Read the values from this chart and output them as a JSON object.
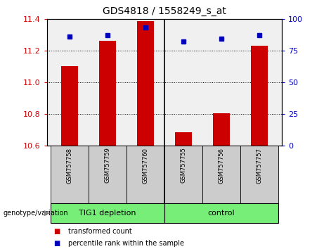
{
  "title": "GDS4818 / 1558249_s_at",
  "samples": [
    "GSM757758",
    "GSM757759",
    "GSM757760",
    "GSM757755",
    "GSM757756",
    "GSM757757"
  ],
  "transformed_counts": [
    11.1,
    11.26,
    11.385,
    10.685,
    10.805,
    11.23
  ],
  "percentile_ranks": [
    86,
    87,
    93,
    82,
    84,
    87
  ],
  "ylim_left": [
    10.6,
    11.4
  ],
  "yticks_left": [
    10.6,
    10.8,
    11.0,
    11.2,
    11.4
  ],
  "ylim_right": [
    0,
    100
  ],
  "yticks_right": [
    0,
    25,
    50,
    75,
    100
  ],
  "bar_color": "#CC0000",
  "dot_color": "#0000BB",
  "bar_width": 0.45,
  "group_names": [
    "TIG1 depletion",
    "control"
  ],
  "group_color": "#77EE77",
  "legend_items": [
    {
      "color": "#CC0000",
      "label": "transformed count"
    },
    {
      "color": "#0000BB",
      "label": "percentile rank within the sample"
    }
  ],
  "tick_color_left": "#CC0000",
  "tick_color_right": "#0000BB",
  "plot_bg": "#f0f0f0",
  "sample_bg": "#cccccc",
  "divider_color": "#333333"
}
